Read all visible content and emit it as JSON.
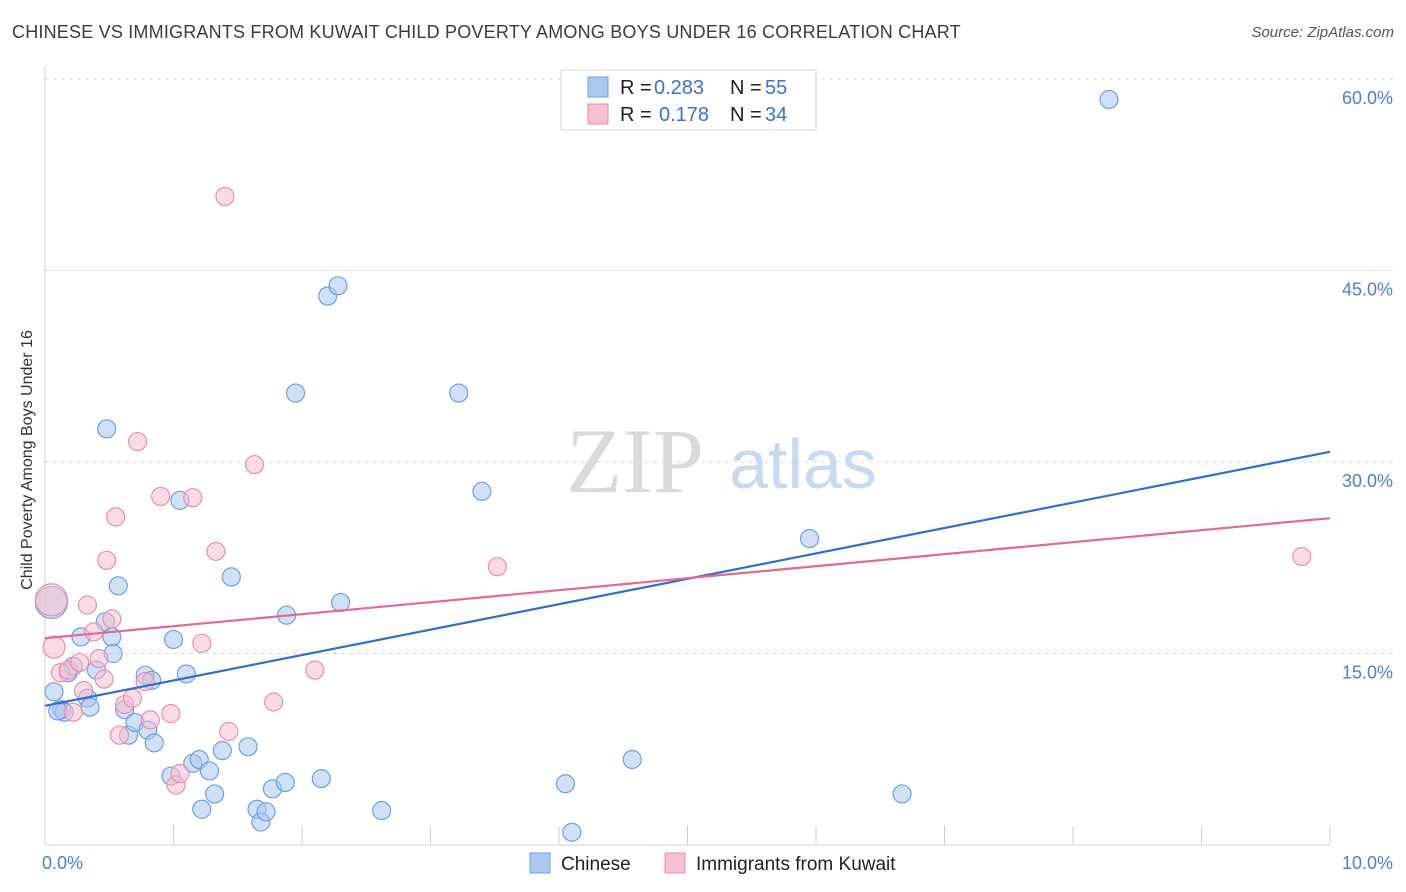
{
  "title": "CHINESE VS IMMIGRANTS FROM KUWAIT CHILD POVERTY AMONG BOYS UNDER 16 CORRELATION CHART",
  "source": "Source: ZipAtlas.com",
  "watermark": {
    "zip": "ZIP",
    "atlas": "atlas"
  },
  "chart_data": {
    "type": "scatter",
    "xlabel": "",
    "ylabel": "Child Poverty Among Boys Under 16",
    "xlim": [
      0,
      10
    ],
    "ylim": [
      0,
      60
    ],
    "x_tick_labels": [
      "0.0%",
      "10.0%"
    ],
    "y_tick_values": [
      15,
      30,
      45,
      60
    ],
    "y_tick_labels": [
      "15.0%",
      "30.0%",
      "45.0%",
      "60.0%"
    ],
    "legend": {
      "r_label": "R =",
      "n_label": "N =",
      "entries": [
        {
          "name": "Chinese",
          "r": "0.283",
          "n": "55",
          "color": "#a9c8f0",
          "stroke": "#6f9fe0"
        },
        {
          "name": "Immigrants from Kuwait",
          "r": "0.178",
          "n": "34",
          "color": "#f7bfd0",
          "stroke": "#ea8fab"
        }
      ]
    },
    "series": [
      {
        "name": "Chinese",
        "color": "#a9c8f0",
        "stroke": "#6f9fe0",
        "line_color": "#2f6fd0",
        "trend": {
          "x": [
            0,
            10
          ],
          "y": [
            10.9,
            30.8
          ]
        },
        "points": [
          [
            0.05,
            19.0,
            16
          ],
          [
            0.07,
            12.0,
            9
          ],
          [
            0.13,
            10.6,
            9
          ],
          [
            0.15,
            10.4,
            9
          ],
          [
            0.18,
            13.5,
            9
          ],
          [
            0.22,
            14.0,
            9
          ],
          [
            0.28,
            16.3,
            9
          ],
          [
            0.33,
            11.5,
            9
          ],
          [
            0.35,
            10.8,
            9
          ],
          [
            0.4,
            13.7,
            9
          ],
          [
            0.47,
            17.5,
            9
          ],
          [
            0.48,
            32.6,
            9
          ],
          [
            0.52,
            16.3,
            9
          ],
          [
            0.53,
            15.0,
            9
          ],
          [
            0.57,
            20.3,
            9
          ],
          [
            0.62,
            10.6,
            9
          ],
          [
            0.65,
            8.6,
            9
          ],
          [
            0.7,
            9.6,
            9
          ],
          [
            0.78,
            13.3,
            9
          ],
          [
            0.8,
            9.0,
            9
          ],
          [
            0.83,
            12.9,
            9
          ],
          [
            0.85,
            8.0,
            9
          ],
          [
            0.98,
            5.4,
            9
          ],
          [
            1.0,
            16.1,
            9
          ],
          [
            1.05,
            27.0,
            9
          ],
          [
            1.1,
            13.4,
            9
          ],
          [
            1.15,
            6.4,
            9
          ],
          [
            1.2,
            6.7,
            9
          ],
          [
            1.22,
            2.8,
            9
          ],
          [
            1.28,
            5.8,
            9
          ],
          [
            1.32,
            4.0,
            9
          ],
          [
            1.38,
            7.4,
            9
          ],
          [
            1.45,
            21.0,
            9
          ],
          [
            1.58,
            7.7,
            9
          ],
          [
            1.65,
            2.8,
            9
          ],
          [
            1.68,
            1.8,
            9
          ],
          [
            1.72,
            2.6,
            9
          ],
          [
            1.77,
            4.4,
            9
          ],
          [
            1.87,
            4.9,
            9
          ],
          [
            1.88,
            18.0,
            9
          ],
          [
            1.95,
            35.4,
            9
          ],
          [
            2.15,
            5.2,
            9
          ],
          [
            2.2,
            43.0,
            9
          ],
          [
            2.28,
            43.8,
            9
          ],
          [
            2.3,
            19.0,
            9
          ],
          [
            2.62,
            2.7,
            9
          ],
          [
            3.22,
            35.4,
            9
          ],
          [
            3.4,
            27.7,
            9
          ],
          [
            4.05,
            4.8,
            9
          ],
          [
            4.1,
            1.0,
            9
          ],
          [
            4.57,
            6.7,
            9
          ],
          [
            5.95,
            24.0,
            9
          ],
          [
            6.67,
            4.0,
            9
          ],
          [
            8.28,
            58.4,
            9
          ],
          [
            0.1,
            10.5,
            9
          ]
        ]
      },
      {
        "name": "Immigrants from Kuwait",
        "color": "#f7bfd0",
        "stroke": "#ea8fab",
        "line_color": "#e06a92",
        "trend": {
          "x": [
            0,
            10
          ],
          "y": [
            16.2,
            25.6
          ]
        },
        "points": [
          [
            0.05,
            19.2,
            16
          ],
          [
            0.07,
            15.5,
            11
          ],
          [
            0.12,
            13.5,
            9
          ],
          [
            0.18,
            13.7,
            9
          ],
          [
            0.22,
            10.4,
            9
          ],
          [
            0.27,
            14.3,
            9
          ],
          [
            0.3,
            12.1,
            9
          ],
          [
            0.33,
            18.8,
            9
          ],
          [
            0.38,
            16.7,
            9
          ],
          [
            0.42,
            14.6,
            9
          ],
          [
            0.46,
            13.0,
            9
          ],
          [
            0.48,
            22.3,
            9
          ],
          [
            0.52,
            17.7,
            9
          ],
          [
            0.55,
            25.7,
            9
          ],
          [
            0.58,
            8.6,
            9
          ],
          [
            0.62,
            11.0,
            9
          ],
          [
            0.68,
            11.5,
            9
          ],
          [
            0.72,
            31.6,
            9
          ],
          [
            0.78,
            12.8,
            9
          ],
          [
            0.82,
            9.8,
            9
          ],
          [
            0.9,
            27.3,
            9
          ],
          [
            0.98,
            10.3,
            9
          ],
          [
            1.02,
            4.7,
            9
          ],
          [
            1.05,
            5.6,
            9
          ],
          [
            1.15,
            27.2,
            9
          ],
          [
            1.22,
            15.8,
            9
          ],
          [
            1.33,
            23.0,
            9
          ],
          [
            1.4,
            50.8,
            9
          ],
          [
            1.43,
            8.9,
            9
          ],
          [
            1.63,
            29.8,
            9
          ],
          [
            1.78,
            11.2,
            9
          ],
          [
            2.1,
            13.7,
            9
          ],
          [
            3.52,
            21.8,
            9
          ],
          [
            9.78,
            22.6,
            9
          ]
        ]
      }
    ]
  }
}
